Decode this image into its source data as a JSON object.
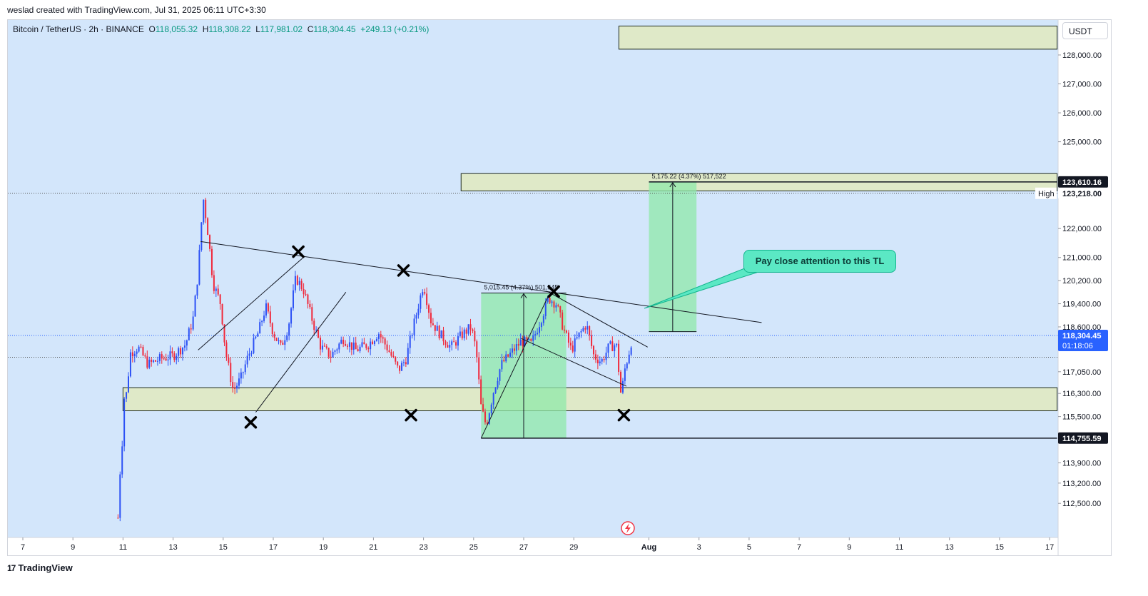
{
  "header": {
    "caption": "weslad created with TradingView.com, Jul 31, 2025 06:11 UTC+3:30"
  },
  "symbol": {
    "name": "Bitcoin / TetherUS · 2h · BINANCE",
    "open_label": "O",
    "open": "118,055.32",
    "high_label": "H",
    "high": "118,308.22",
    "low_label": "L",
    "low": "117,981.02",
    "close_label": "C",
    "close": "118,304.45",
    "change": "+249.13 (+0.21%)"
  },
  "currency": "USDT",
  "callout": {
    "text": "Pay close attention to this TL"
  },
  "footer": {
    "brand": "TradingView",
    "brand_mark": "17"
  },
  "colors": {
    "background": "#d3e6fb",
    "up": "#2c51f5",
    "down": "#f0293b",
    "zone": "#dfe9c8",
    "measure": "#8fe8a9",
    "callout": "#5be8c4"
  },
  "chart_data": {
    "type": "candlestick",
    "title": "Bitcoin / TetherUS · 2h · BINANCE",
    "ylim": [
      111900,
      129300
    ],
    "price_ticks": [
      {
        "v": 128000,
        "label": "128,000.00"
      },
      {
        "v": 127000,
        "label": "127,000.00"
      },
      {
        "v": 126000,
        "label": "126,000.00"
      },
      {
        "v": 125000,
        "label": "125,000.00"
      },
      {
        "v": 122000,
        "label": "122,000.00"
      },
      {
        "v": 121000,
        "label": "121,000.00"
      },
      {
        "v": 120200,
        "label": "120,200.00"
      },
      {
        "v": 119400,
        "label": "119,400.00"
      },
      {
        "v": 118600,
        "label": "118,600.00"
      },
      {
        "v": 117050,
        "label": "117,050.00"
      },
      {
        "v": 116300,
        "label": "116,300.00"
      },
      {
        "v": 115500,
        "label": "115,500.00"
      },
      {
        "v": 113900,
        "label": "113,900.00"
      },
      {
        "v": 113200,
        "label": "113,200.00"
      },
      {
        "v": 112500,
        "label": "112,500.00"
      }
    ],
    "price_badges": [
      {
        "v": 123610.16,
        "label": "123,610.16",
        "style": "dark"
      },
      {
        "v": 123218.0,
        "label": "123,218.00",
        "style": "light",
        "tag": "High"
      },
      {
        "v": 118304.45,
        "label": "118,304.45",
        "sub": "01:18:06",
        "style": "blue"
      },
      {
        "v": 114755.59,
        "label": "114,755.59",
        "style": "dark"
      }
    ],
    "x_domain": [
      6.2,
      48.0
    ],
    "date_ticks": [
      {
        "d": 7,
        "label": "7"
      },
      {
        "d": 9,
        "label": "9"
      },
      {
        "d": 11,
        "label": "11"
      },
      {
        "d": 13,
        "label": "13"
      },
      {
        "d": 15,
        "label": "15"
      },
      {
        "d": 17,
        "label": "17"
      },
      {
        "d": 19,
        "label": "19"
      },
      {
        "d": 21,
        "label": "21"
      },
      {
        "d": 23,
        "label": "23"
      },
      {
        "d": 25,
        "label": "25"
      },
      {
        "d": 27,
        "label": "27"
      },
      {
        "d": 29,
        "label": "29"
      },
      {
        "d": 32,
        "label": "Aug"
      },
      {
        "d": 34,
        "label": "3"
      },
      {
        "d": 36,
        "label": "5"
      },
      {
        "d": 38,
        "label": "7"
      },
      {
        "d": 40,
        "label": "9"
      },
      {
        "d": 42,
        "label": "11"
      },
      {
        "d": 44,
        "label": "13"
      },
      {
        "d": 46,
        "label": "15"
      },
      {
        "d": 48,
        "label": "17"
      }
    ],
    "price_path": [
      [
        10.8,
        112000
      ],
      [
        10.85,
        113500
      ],
      [
        10.95,
        113800
      ],
      [
        11.0,
        116300
      ],
      [
        11.1,
        116000
      ],
      [
        11.3,
        117700
      ],
      [
        11.6,
        117900
      ],
      [
        12.0,
        117300
      ],
      [
        12.5,
        117500
      ],
      [
        13.0,
        117600
      ],
      [
        13.5,
        118000
      ],
      [
        13.8,
        118900
      ],
      [
        14.0,
        120500
      ],
      [
        14.2,
        123100
      ],
      [
        14.4,
        121800
      ],
      [
        14.6,
        120100
      ],
      [
        14.9,
        119400
      ],
      [
        15.1,
        117700
      ],
      [
        15.4,
        116400
      ],
      [
        15.7,
        116800
      ],
      [
        16.0,
        117600
      ],
      [
        16.4,
        118400
      ],
      [
        16.7,
        119300
      ],
      [
        17.0,
        118400
      ],
      [
        17.3,
        117900
      ],
      [
        17.6,
        118600
      ],
      [
        17.9,
        120300
      ],
      [
        18.2,
        119900
      ],
      [
        18.5,
        119000
      ],
      [
        18.9,
        117900
      ],
      [
        19.3,
        117600
      ],
      [
        19.8,
        118200
      ],
      [
        20.3,
        117800
      ],
      [
        20.8,
        118000
      ],
      [
        21.2,
        118400
      ],
      [
        21.6,
        117800
      ],
      [
        22.0,
        117100
      ],
      [
        22.3,
        117500
      ],
      [
        22.7,
        119000
      ],
      [
        23.0,
        120100
      ],
      [
        23.3,
        118800
      ],
      [
        23.7,
        118300
      ],
      [
        24.1,
        117900
      ],
      [
        24.5,
        118300
      ],
      [
        24.9,
        118600
      ],
      [
        25.1,
        117800
      ],
      [
        25.3,
        115800
      ],
      [
        25.5,
        115200
      ],
      [
        25.8,
        116400
      ],
      [
        26.1,
        117300
      ],
      [
        26.5,
        117700
      ],
      [
        26.9,
        118100
      ],
      [
        27.3,
        118000
      ],
      [
        27.7,
        118900
      ],
      [
        28.0,
        119600
      ],
      [
        28.3,
        119400
      ],
      [
        28.6,
        118500
      ],
      [
        28.9,
        117800
      ],
      [
        29.2,
        118300
      ],
      [
        29.5,
        118700
      ],
      [
        29.8,
        117600
      ],
      [
        30.1,
        117400
      ],
      [
        30.4,
        117900
      ],
      [
        30.7,
        118000
      ],
      [
        30.9,
        116100
      ],
      [
        31.0,
        117000
      ],
      [
        31.2,
        117700
      ],
      [
        31.35,
        118304
      ]
    ],
    "zones": [
      {
        "from": 11.0,
        "to": 48.3,
        "top": 116500,
        "bottom": 115700
      },
      {
        "from": 24.5,
        "to": 48.3,
        "top": 123900,
        "bottom": 123300
      },
      {
        "from": 30.8,
        "to": 48.3,
        "top": 129000,
        "bottom": 128200
      }
    ],
    "measure_boxes": [
      {
        "label": "5,015.45 (4.37%) 501,545",
        "from": 25.3,
        "to": 28.7,
        "top": 119770,
        "bottom": 114755
      },
      {
        "label": "5,175.22 (4.37%) 517,522",
        "from": 32.0,
        "to": 33.9,
        "top": 123610,
        "bottom": 118435
      }
    ],
    "trendlines": [
      {
        "name": "descending-resistance",
        "x1": 14.1,
        "y1": 121550,
        "x2": 36.5,
        "y2": 118750
      },
      {
        "name": "rising-wedge-upper",
        "x1": 14.0,
        "y1": 117800,
        "x2": 18.2,
        "y2": 121000
      },
      {
        "name": "rising-wedge-lower",
        "x1": 16.3,
        "y1": 115650,
        "x2": 19.9,
        "y2": 119800
      },
      {
        "name": "rally-line",
        "x1": 25.3,
        "y1": 114755,
        "x2": 28.0,
        "y2": 119700
      },
      {
        "name": "flag-upper",
        "x1": 28.0,
        "y1": 119800,
        "x2": 31.95,
        "y2": 117900
      },
      {
        "name": "flag-lower",
        "x1": 26.9,
        "y1": 118200,
        "x2": 31.1,
        "y2": 116550
      },
      {
        "name": "support-line",
        "x1": 25.3,
        "y1": 114755,
        "x2": 48.3,
        "y2": 114755
      },
      {
        "name": "high-line",
        "x1": 32.0,
        "y1": 123610,
        "x2": 48.3,
        "y2": 123610
      }
    ],
    "x_marks": [
      {
        "d": 18.0,
        "v": 121200
      },
      {
        "d": 22.2,
        "v": 120550
      },
      {
        "d": 28.2,
        "v": 119820
      },
      {
        "d": 16.1,
        "v": 115300
      },
      {
        "d": 22.5,
        "v": 115550
      },
      {
        "d": 31.0,
        "v": 115550
      }
    ]
  }
}
